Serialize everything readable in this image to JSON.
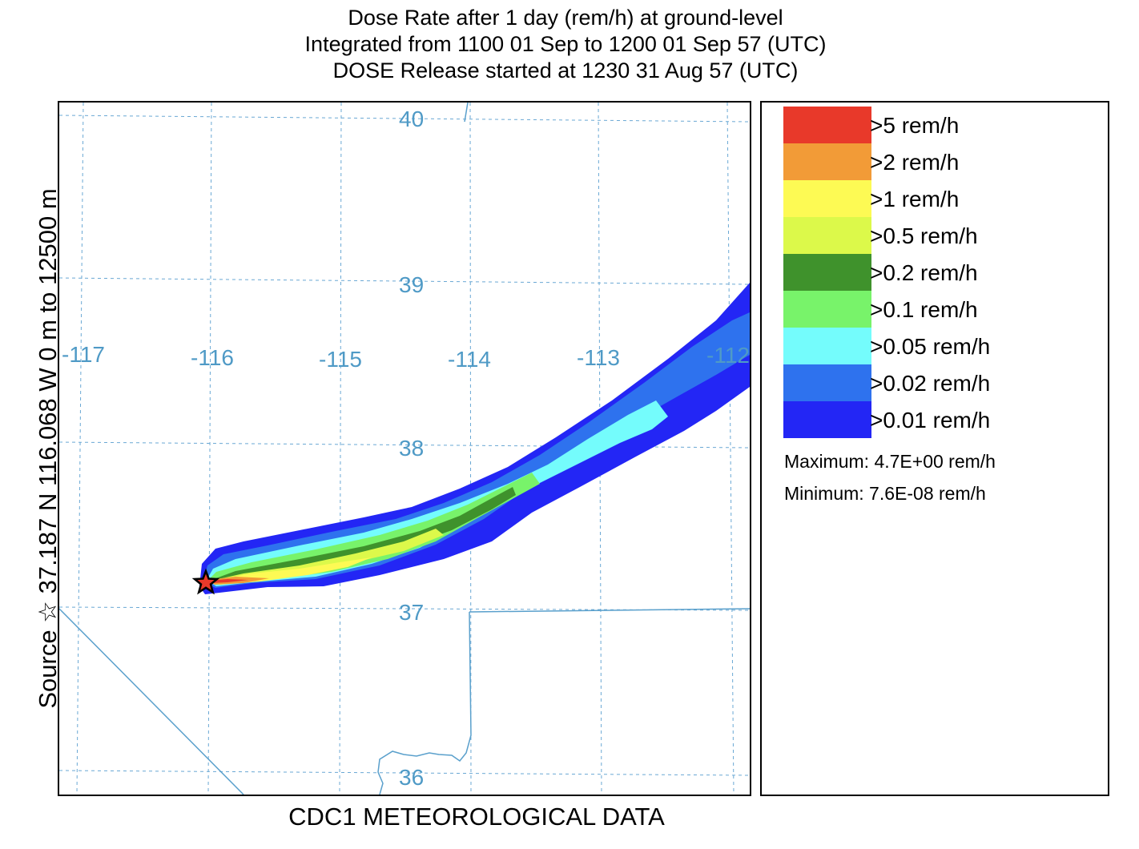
{
  "title": {
    "line1": "Dose Rate after 1 day (rem/h) at ground-level",
    "line2": "Integrated from 1100 01 Sep to 1200 01 Sep 57 (UTC)",
    "line3": "DOSE Release started at 1230 31 Aug 57 (UTC)"
  },
  "side_label": "Source ☆ 37.187  N 116.068  W      0 m to 12500 m",
  "footer_label": "CDC1 METEOROLOGICAL DATA",
  "map": {
    "latitude_labels": [
      "40",
      "39",
      "38",
      "37",
      "36"
    ],
    "longitude_labels": [
      "-117",
      "-116",
      "-115",
      "-114",
      "-113",
      "-112"
    ],
    "source": {
      "lat": 37.187,
      "lon": -116.068
    },
    "colors": {
      "grid": "#6aa8d4",
      "border": "#5aa0cc",
      "label": "#4f9ac6",
      "star": "#000000"
    }
  },
  "legend": {
    "items": [
      {
        "label": ">5 rem/h",
        "color": "#e8392a"
      },
      {
        "label": ">2 rem/h",
        "color": "#f29b37"
      },
      {
        "label": ">1 rem/h",
        "color": "#fdfa54"
      },
      {
        "label": ">0.5 rem/h",
        "color": "#dcf94a"
      },
      {
        "label": ">0.2 rem/h",
        "color": "#3f922c"
      },
      {
        "label": ">0.1 rem/h",
        "color": "#78f36a"
      },
      {
        "label": ">0.05 rem/h",
        "color": "#74fcfc"
      },
      {
        "label": ">0.02 rem/h",
        "color": "#2e72ee"
      },
      {
        "label": ">0.01 rem/h",
        "color": "#2326f5"
      }
    ],
    "maximum": "Maximum: 4.7E+00 rem/h",
    "minimum": "Minimum: 7.6E-08 rem/h"
  }
}
